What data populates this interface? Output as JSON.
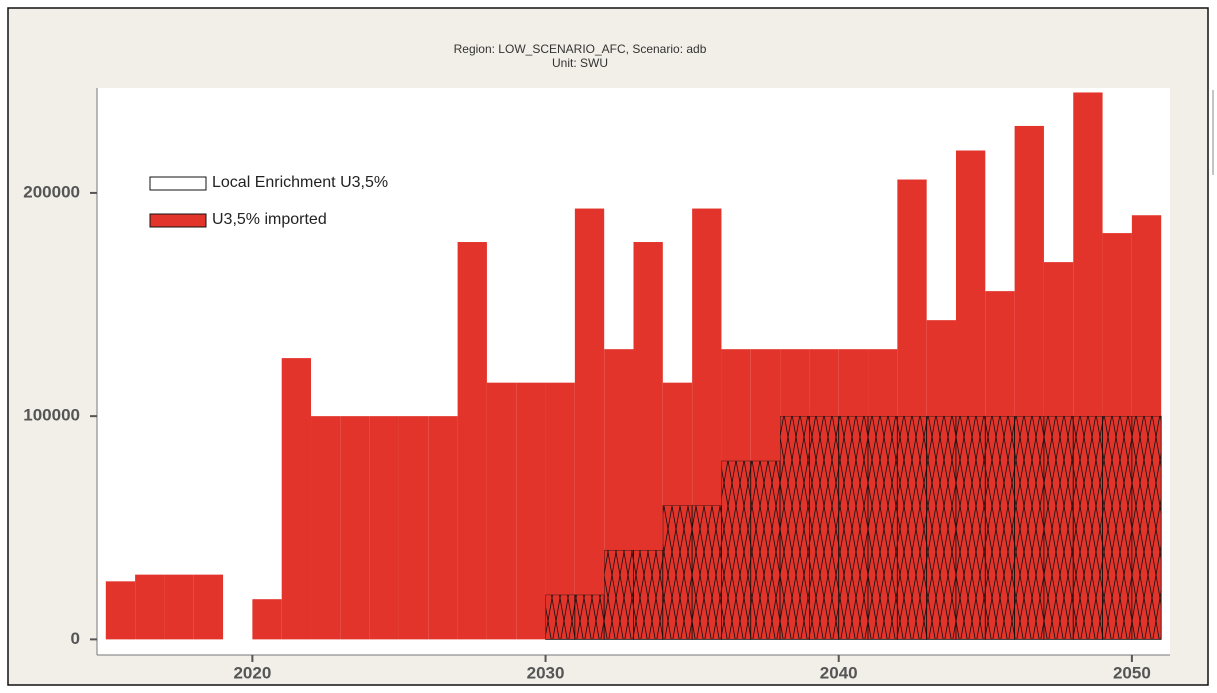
{
  "chart_data": {
    "type": "step-area",
    "title": "Region: LOW_SCENARIO_AFC, Scenario: adb",
    "subtitle": "Unit: SWU",
    "x": [
      2015,
      2016,
      2017,
      2018,
      2019,
      2020,
      2021,
      2022,
      2023,
      2024,
      2025,
      2026,
      2027,
      2028,
      2029,
      2030,
      2031,
      2032,
      2033,
      2034,
      2035,
      2036,
      2037,
      2038,
      2039,
      2040,
      2041,
      2042,
      2043,
      2044,
      2045,
      2046,
      2047,
      2048,
      2049,
      2050
    ],
    "series": [
      {
        "name": "Local Enrichment U3,5%",
        "color": "#e3342b",
        "hatch": true,
        "values": [
          0,
          0,
          0,
          0,
          0,
          0,
          0,
          0,
          0,
          0,
          0,
          0,
          0,
          0,
          0,
          20000,
          20000,
          40000,
          40000,
          60000,
          60000,
          80000,
          80000,
          100000,
          100000,
          100000,
          100000,
          100000,
          100000,
          100000,
          100000,
          100000,
          100000,
          100000,
          100000,
          100000
        ]
      },
      {
        "name": "U3,5% imported",
        "color": "#e3342b",
        "hatch": false,
        "values": [
          26000,
          29000,
          29000,
          29000,
          0,
          18000,
          126000,
          100000,
          100000,
          100000,
          100000,
          100000,
          178000,
          115000,
          115000,
          95000,
          173000,
          90000,
          138000,
          55000,
          133000,
          50000,
          50000,
          30000,
          30000,
          30000,
          30000,
          106000,
          43000,
          119000,
          56000,
          130000,
          69000,
          145000,
          82000,
          90000
        ]
      }
    ],
    "stacked": true,
    "xlim": [
      2014.7,
      2051.3
    ],
    "xticks": [
      2020,
      2030,
      2040,
      2050
    ],
    "ylim": [
      -7000,
      247000
    ],
    "yticks": [
      0,
      100000,
      200000
    ]
  }
}
